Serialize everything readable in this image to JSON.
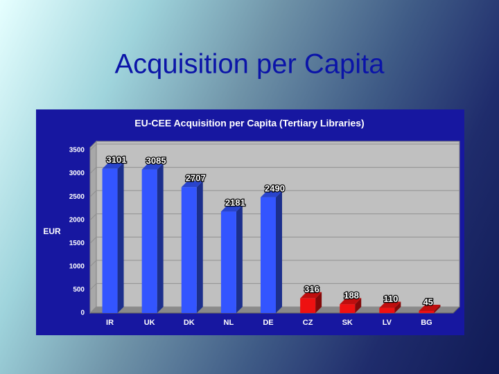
{
  "slide": {
    "title": "Acquisition per Capita"
  },
  "chart_data": {
    "type": "bar3d",
    "title": "EU-CEE Acquisition per Capita (Tertiary Libraries)",
    "y_label": "EUR",
    "categories": [
      "IR",
      "UK",
      "DK",
      "NL",
      "DE",
      "CZ",
      "SK",
      "LV",
      "BG"
    ],
    "values": [
      3101,
      3085,
      2707,
      2181,
      2490,
      316,
      188,
      110,
      45
    ],
    "colors": [
      "#3355ff",
      "#3355ff",
      "#3355ff",
      "#3355ff",
      "#3355ff",
      "#ee1111",
      "#ee1111",
      "#ee1111",
      "#ee1111"
    ],
    "ylim": [
      0,
      3500
    ],
    "yticks": [
      0,
      500,
      1000,
      1500,
      2000,
      2500,
      3000,
      3500
    ],
    "grid": true
  }
}
